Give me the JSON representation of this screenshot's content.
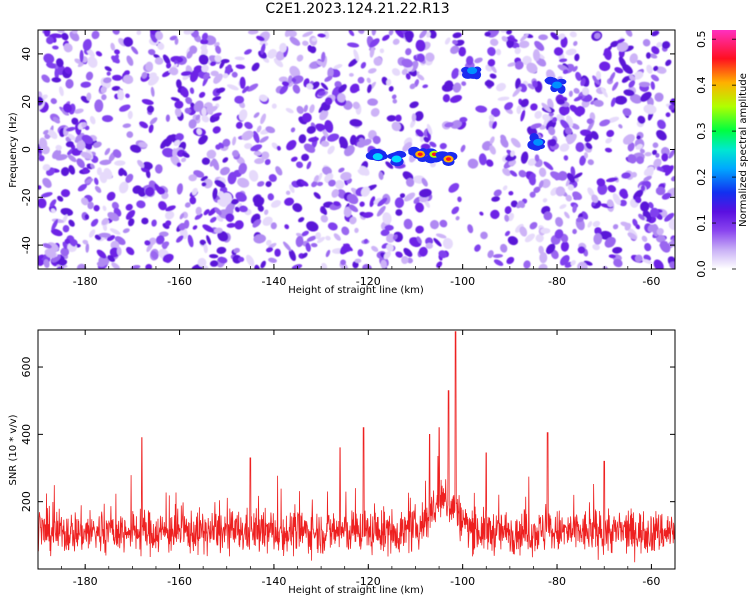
{
  "title": "C2E1.2023.124.21.22.R13",
  "colors": {
    "snr_line": "#ee2020",
    "spectrogram_base": "#7b2be8",
    "colormap": [
      "#ffffff",
      "#dccbf8",
      "#b48af0",
      "#8f4ef0",
      "#6a1fe0",
      "#2a3af0",
      "#00c8ff",
      "#10ff80",
      "#aaff00",
      "#ffb000",
      "#ff1020",
      "#ff30b0"
    ]
  },
  "chart_data": [
    {
      "type": "heatmap",
      "title": "",
      "xlabel": "Height of straight line (km)",
      "ylabel": "Frequency (Hz)",
      "xlim": [
        -190,
        -55
      ],
      "ylim": [
        -50,
        50
      ],
      "x_ticks": [
        -180,
        -160,
        -140,
        -120,
        -100,
        -80,
        -60
      ],
      "y_ticks": [
        -40,
        -20,
        0,
        20,
        40
      ],
      "grid": false,
      "colorbar": {
        "label": "Normalized spectral amplitude",
        "range": [
          0.0,
          0.52
        ],
        "ticks": [
          0.0,
          0.1,
          0.2,
          0.3,
          0.4,
          0.5
        ],
        "tick_labels": [
          "0.0",
          "0.1",
          "0.2",
          "0.3",
          "0.4",
          "0.5"
        ],
        "placement": "right"
      },
      "features": [
        {
          "x": -118,
          "y": -3,
          "value": 0.28
        },
        {
          "x": -114,
          "y": -4,
          "value": 0.24
        },
        {
          "x": -109,
          "y": -2,
          "value": 0.45
        },
        {
          "x": -106,
          "y": -2,
          "value": 0.38
        },
        {
          "x": -103,
          "y": -4,
          "value": 0.42
        },
        {
          "x": -84,
          "y": 3,
          "value": 0.22
        },
        {
          "x": -80,
          "y": 27,
          "value": 0.2
        },
        {
          "x": -98,
          "y": 33,
          "value": 0.2
        }
      ]
    },
    {
      "type": "line",
      "title": "",
      "xlabel": "Height of straight line (km)",
      "ylabel": "SNR (10 * v/v)",
      "xlim": [
        -190,
        -55
      ],
      "ylim": [
        0,
        710
      ],
      "x_ticks": [
        -180,
        -160,
        -140,
        -120,
        -100,
        -80,
        -60
      ],
      "y_ticks": [
        200,
        400,
        600
      ],
      "grid": false,
      "baseline": [
        110,
        110
      ],
      "peaks": [
        {
          "x": -101.5,
          "y": 705
        },
        {
          "x": -103,
          "y": 530
        },
        {
          "x": -105,
          "y": 420
        },
        {
          "x": -107,
          "y": 400
        },
        {
          "x": -121,
          "y": 420
        },
        {
          "x": -168,
          "y": 390
        },
        {
          "x": -82,
          "y": 405
        },
        {
          "x": -95,
          "y": 345
        },
        {
          "x": -70,
          "y": 320
        },
        {
          "x": -126,
          "y": 360
        },
        {
          "x": -145,
          "y": 330
        }
      ]
    }
  ]
}
